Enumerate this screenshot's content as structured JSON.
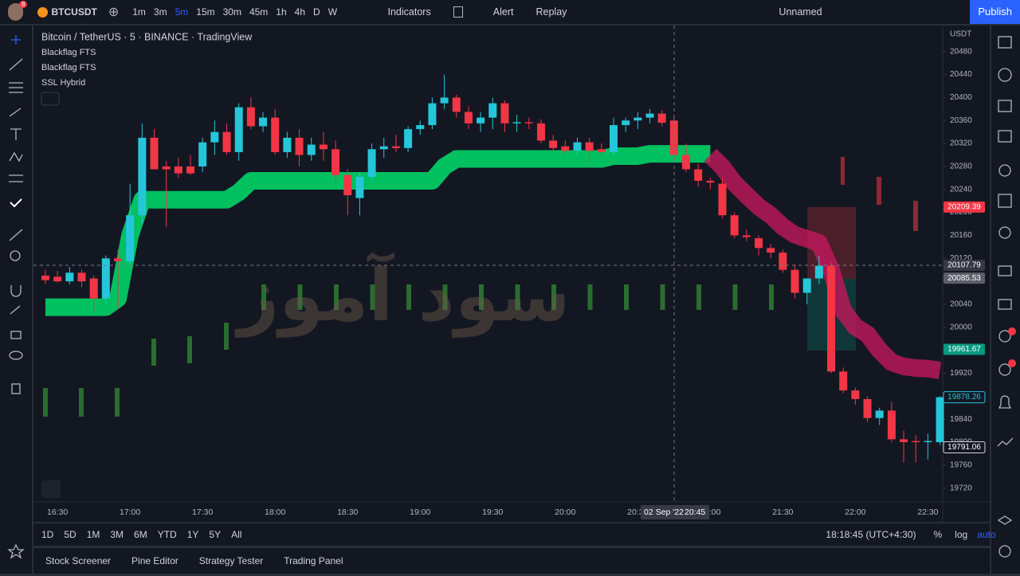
{
  "toolbar": {
    "badge": "8",
    "symbol": "BTCUSDT",
    "intervals": [
      "1m",
      "3m",
      "5m",
      "15m",
      "30m",
      "45m",
      "1h",
      "4h",
      "D",
      "W"
    ],
    "indicators": "Indicators",
    "alert": "Alert",
    "replay": "Replay",
    "layout": "Unnamed",
    "publish": "Publish"
  },
  "legend": {
    "title": "Bitcoin / TetherUS · 5 · BINANCE · TradingView",
    "studies": [
      "Blackflag FTS",
      "Blackflag FTS",
      "SSL Hybrid"
    ]
  },
  "watermark": "سود آموز",
  "chart_data": {
    "type": "candlestick",
    "currency": "USDT",
    "categories": [
      null,
      "16:30",
      null,
      null,
      null,
      null,
      null,
      "17:00",
      null,
      null,
      null,
      null,
      null,
      "17:30",
      null,
      null,
      null,
      null,
      null,
      "18:00",
      null,
      null,
      null,
      null,
      null,
      "18:30",
      null,
      null,
      null,
      null,
      null,
      "19:00",
      null,
      null,
      null,
      null,
      null,
      "19:30",
      null,
      null,
      null,
      null,
      null,
      "20:00",
      null,
      null,
      null,
      null,
      null,
      "20:30",
      null,
      null,
      null,
      null,
      null,
      "21:00",
      null,
      null,
      null,
      null,
      null,
      "21:30",
      null,
      null,
      null,
      null,
      null,
      "22:00",
      null,
      null,
      null,
      null,
      null,
      "22:30",
      null
    ],
    "open": [
      20090,
      20088,
      20080,
      20095,
      20085,
      20050,
      20120,
      20115,
      20195,
      20330,
      20280,
      20280,
      20280,
      20280,
      20322,
      20340,
      20305,
      20383,
      20350,
      20365,
      20305,
      20330,
      20300,
      20318,
      20310,
      20265,
      20225,
      20262,
      20310,
      20315,
      20312,
      20345,
      20352,
      20390,
      20400,
      20375,
      20355,
      20365,
      20390,
      20355,
      20357,
      20355,
      20325,
      20315,
      20308,
      20322,
      20310,
      20305,
      20352,
      20360,
      20365,
      20372,
      20360,
      20300,
      20275,
      20255,
      20250,
      20195,
      20160,
      20155,
      20138,
      20130,
      20100,
      20060,
      20085,
      20107,
      19923,
      19890,
      19875,
      19842,
      19855,
      19805,
      19802,
      19800,
      19800
    ],
    "high": [
      20100,
      20098,
      20105,
      20100,
      20090,
      20125,
      20135,
      20250,
      20355,
      20345,
      20290,
      20295,
      20300,
      20330,
      20360,
      20355,
      20390,
      20400,
      20375,
      20380,
      20340,
      20345,
      20330,
      20340,
      20325,
      20275,
      20270,
      20320,
      20330,
      20335,
      20350,
      20360,
      20400,
      20440,
      20405,
      20385,
      20375,
      20400,
      20395,
      20370,
      20365,
      20362,
      20335,
      20325,
      20330,
      20330,
      20320,
      20365,
      20365,
      20375,
      20380,
      20378,
      20365,
      20320,
      20285,
      20260,
      20260,
      20200,
      20170,
      20160,
      20145,
      20135,
      20110,
      20080,
      20125,
      20115,
      19930,
      19895,
      19880,
      19860,
      19870,
      19820,
      19812,
      19815,
      19880
    ],
    "low": [
      20075,
      20078,
      20075,
      20070,
      20026,
      20040,
      20032,
      20110,
      20180,
      20275,
      20175,
      20260,
      20265,
      20270,
      20300,
      20300,
      20290,
      20345,
      20340,
      20300,
      20295,
      20280,
      20290,
      20290,
      20255,
      20195,
      20195,
      20255,
      20295,
      20305,
      20305,
      20335,
      20345,
      20380,
      20365,
      20345,
      20340,
      20345,
      20340,
      20340,
      20345,
      20320,
      20305,
      20300,
      20300,
      20290,
      20300,
      20300,
      20340,
      20345,
      20355,
      20350,
      20290,
      20270,
      20245,
      20240,
      20190,
      20155,
      20150,
      20125,
      20120,
      20095,
      20050,
      20040,
      20075,
      19920,
      19885,
      19865,
      19835,
      19830,
      19800,
      19765,
      19765,
      19770,
      19795
    ],
    "close": [
      20082,
      20080,
      20095,
      20080,
      20050,
      20120,
      20115,
      20195,
      20330,
      20275,
      20275,
      20268,
      20268,
      20322,
      20340,
      20305,
      20383,
      20350,
      20365,
      20305,
      20330,
      20300,
      20318,
      20310,
      20265,
      20230,
      20262,
      20310,
      20315,
      20312,
      20345,
      20352,
      20390,
      20400,
      20375,
      20355,
      20365,
      20390,
      20355,
      20357,
      20355,
      20325,
      20312,
      20307,
      20322,
      20307,
      20305,
      20352,
      20360,
      20365,
      20372,
      20356,
      20300,
      20275,
      20255,
      20252,
      20195,
      20160,
      20157,
      20138,
      20130,
      20100,
      20060,
      20085,
      20107,
      19923,
      19890,
      19875,
      19842,
      19855,
      19805,
      19800,
      19800,
      19802,
      19878.26
    ],
    "up_color": "#26c6da",
    "down_color": "#f23645",
    "ssl": {
      "up": {
        "color": "#00c060",
        "values": [
          20035,
          20035,
          20035,
          20035,
          20035,
          20035,
          20050,
          20160,
          20222,
          20222,
          20222,
          20222,
          20222,
          20222,
          20222,
          20222,
          20235,
          20255,
          20255,
          20255,
          20255,
          20255,
          20255,
          20255,
          20255,
          20255,
          20255,
          20255,
          20255,
          20255,
          20255,
          20255,
          20255,
          20280,
          20293,
          20293,
          20293,
          20293,
          20293,
          20293,
          20293,
          20293,
          20293,
          20293,
          20293,
          20293,
          20293,
          20298,
          20298,
          20298,
          20302,
          20302,
          20302,
          20302,
          20302,
          20302,
          null,
          null,
          null,
          null,
          null,
          null,
          null,
          null,
          null,
          null,
          null,
          null,
          null,
          null,
          null,
          null,
          null,
          null,
          null
        ]
      },
      "down": {
        "color": "#c2185b",
        "values": [
          null,
          null,
          null,
          null,
          null,
          null,
          null,
          null,
          null,
          null,
          null,
          null,
          null,
          null,
          null,
          null,
          null,
          null,
          null,
          null,
          null,
          null,
          null,
          null,
          null,
          null,
          null,
          null,
          null,
          null,
          null,
          null,
          null,
          null,
          null,
          null,
          null,
          null,
          null,
          null,
          null,
          null,
          null,
          null,
          null,
          null,
          null,
          null,
          null,
          null,
          null,
          null,
          null,
          null,
          null,
          20300,
          20279,
          20251,
          20230,
          20210,
          20195,
          20175,
          20161,
          20154,
          20147,
          20099,
          20029,
          20001,
          19988,
          19960,
          19939,
          19932,
          19929,
          19928,
          19925
        ]
      }
    },
    "ylim": [
      19696,
      20524
    ],
    "yticks": [
      20480,
      20440,
      20400,
      20360,
      20320,
      20280,
      20240,
      20200,
      20160,
      20120,
      20080,
      20040,
      20000,
      19960,
      19920,
      19880,
      19840,
      19800,
      19760,
      19720
    ],
    "price_labels": [
      {
        "value": 20209.39,
        "color": "#f23645"
      },
      {
        "value": 20107.79,
        "color": "#363a45"
      },
      {
        "value": 20085.53,
        "color": "#5d606b"
      },
      {
        "value": 19961.67,
        "color": "#089981"
      },
      {
        "value": 19878.26,
        "color": "#131722"
      },
      {
        "value": 19791.06,
        "color": "#131722"
      }
    ],
    "crosshair": {
      "date": "02 Sep '22",
      "time": "20:45"
    }
  },
  "range_bar": {
    "ranges": [
      "1D",
      "5D",
      "1M",
      "3M",
      "6M",
      "YTD",
      "1Y",
      "5Y",
      "All"
    ],
    "clock": "18:18:45 (UTC+4:30)",
    "percent": "%",
    "log": "log",
    "auto": "auto"
  },
  "tabs": [
    "Stock Screener",
    "Pine Editor",
    "Strategy Tester",
    "Trading Panel"
  ]
}
